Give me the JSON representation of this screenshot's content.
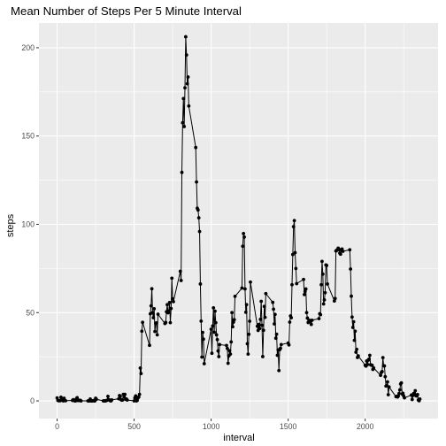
{
  "chart_data": {
    "type": "line",
    "title": "Mean Number of Steps Per 5 Minute Interval",
    "xlabel": "interval",
    "ylabel": "steps",
    "xlim": [
      -118,
      2473
    ],
    "ylim": [
      -10,
      214
    ],
    "x_ticks": [
      0,
      500,
      1000,
      1500,
      2000
    ],
    "y_ticks": [
      0,
      50,
      100,
      150,
      200
    ],
    "grid": true,
    "markers": true,
    "colors": {
      "panel": "#ebebeb",
      "grid_major": "#ffffff",
      "line": "#000000",
      "point": "#000000"
    },
    "series": [
      {
        "x": [
          0,
          5,
          10,
          15,
          20,
          25,
          30,
          35,
          40,
          45,
          50,
          55,
          100,
          105,
          110,
          115,
          120,
          125,
          130,
          135,
          140,
          145,
          150,
          155,
          200,
          205,
          210,
          215,
          220,
          225,
          230,
          235,
          240,
          245,
          250,
          255,
          300,
          305,
          310,
          315,
          320,
          325,
          330,
          335,
          340,
          345,
          350,
          355,
          400,
          405,
          410,
          415,
          420,
          425,
          430,
          435,
          440,
          445,
          450,
          455,
          500,
          505,
          510,
          515,
          520,
          525,
          530,
          535,
          540,
          545,
          550,
          555,
          600,
          605,
          610,
          615,
          620,
          625,
          630,
          635,
          640,
          645,
          650,
          655,
          700,
          705,
          710,
          715,
          720,
          725,
          730,
          735,
          740,
          745,
          750,
          755,
          800,
          805,
          810,
          815,
          820,
          825,
          830,
          835,
          840,
          845,
          850,
          855,
          900,
          905,
          910,
          915,
          920,
          925,
          930,
          935,
          940,
          945,
          950,
          955,
          1000,
          1005,
          1010,
          1015,
          1020,
          1025,
          1030,
          1035,
          1040,
          1045,
          1050,
          1055,
          1100,
          1105,
          1110,
          1115,
          1120,
          1125,
          1130,
          1135,
          1140,
          1145,
          1150,
          1155,
          1200,
          1205,
          1210,
          1215,
          1220,
          1225,
          1230,
          1235,
          1240,
          1245,
          1250,
          1255,
          1300,
          1305,
          1310,
          1315,
          1320,
          1325,
          1330,
          1335,
          1340,
          1345,
          1350,
          1355,
          1400,
          1405,
          1410,
          1415,
          1420,
          1425,
          1430,
          1435,
          1440,
          1445,
          1450,
          1455,
          1500,
          1505,
          1510,
          1515,
          1520,
          1525,
          1530,
          1535,
          1540,
          1545,
          1550,
          1555,
          1600,
          1605,
          1610,
          1615,
          1620,
          1625,
          1630,
          1635,
          1640,
          1645,
          1650,
          1655,
          1700,
          1705,
          1710,
          1715,
          1720,
          1725,
          1730,
          1735,
          1740,
          1745,
          1750,
          1755,
          1800,
          1805,
          1810,
          1815,
          1820,
          1825,
          1830,
          1835,
          1840,
          1845,
          1850,
          1855,
          1900,
          1905,
          1910,
          1915,
          1920,
          1925,
          1930,
          1935,
          1940,
          1945,
          1950,
          1955,
          2000,
          2005,
          2010,
          2015,
          2020,
          2025,
          2030,
          2035,
          2040,
          2045,
          2050,
          2055,
          2100,
          2105,
          2110,
          2115,
          2120,
          2125,
          2130,
          2135,
          2140,
          2145,
          2150,
          2155,
          2200,
          2205,
          2210,
          2215,
          2220,
          2225,
          2230,
          2235,
          2240,
          2245,
          2250,
          2255,
          2300,
          2305,
          2310,
          2315,
          2320,
          2325,
          2330,
          2335,
          2340,
          2345,
          2350,
          2355
        ],
        "y": [
          1.7,
          0.3,
          0.1,
          0.2,
          0.1,
          2.1,
          0.5,
          0.9,
          0,
          1.5,
          0.3,
          0.1,
          0.3,
          0.7,
          0.2,
          0,
          0,
          1.1,
          1.8,
          0.2,
          0.2,
          0.4,
          0.3,
          0,
          0,
          0,
          0,
          1.1,
          0,
          0,
          0,
          0.2,
          0,
          0,
          1.5,
          0.9,
          0,
          0,
          0,
          0,
          0.2,
          0.4,
          2.6,
          0.7,
          0.5,
          0.1,
          0,
          0.6,
          1.2,
          3,
          2.6,
          0.7,
          0.4,
          0.5,
          3.7,
          2.3,
          3.7,
          0.9,
          1.1,
          0.5,
          0,
          1.7,
          2.8,
          0,
          0.3,
          1.7,
          2.2,
          3.7,
          18.6,
          15.5,
          39.5,
          44.5,
          31.5,
          49.3,
          53.8,
          63.5,
          50,
          47.1,
          52.2,
          39.3,
          44,
          44.2,
          37.4,
          49.1,
          43.8,
          44.4,
          50.5,
          54.5,
          49.9,
          50.9,
          55.7,
          44.3,
          52.3,
          69.5,
          57.8,
          56.2,
          73.4,
          68.2,
          129.4,
          157.5,
          171.2,
          155.4,
          177.3,
          206.2,
          195.9,
          179.6,
          183.4,
          167,
          143.5,
          124,
          109.1,
          108.1,
          103.7,
          95.9,
          66.2,
          45.2,
          24.8,
          38.8,
          34.98,
          21.1,
          40.6,
          26.98,
          42.4,
          52.7,
          38.9,
          50.8,
          44.3,
          37.4,
          34.7,
          28.3,
          25.1,
          31.9,
          31.4,
          29.7,
          21.3,
          25.5,
          28.4,
          26.5,
          33.4,
          50,
          42,
          44.6,
          46,
          59.2,
          63.9,
          87.6,
          94.8,
          92.8,
          63.4,
          50.2,
          54.5,
          32.4,
          26.5,
          37.7,
          45.1,
          67.3,
          42.3,
          39.9,
          43.3,
          40.98,
          46.2,
          56.4,
          42.8,
          25.1,
          39.97,
          53.5,
          47.3,
          60.8,
          55.8,
          51.96,
          43.6,
          49,
          35.5,
          37.8,
          25.8,
          28.9,
          17.2,
          29,
          29.8,
          31.9,
          32.8,
          31.7,
          44.6,
          48.1,
          47.1,
          65.8,
          82.9,
          98.7,
          102.1,
          83.96,
          75,
          66.4,
          68.8,
          60.2,
          62.1,
          63.4,
          50,
          46.9,
          44.4,
          44.8,
          45.6,
          45.3,
          43.3,
          45.7,
          46.6,
          49.4,
          48.8,
          65.8,
          79,
          71.8,
          54.9,
          57.2,
          61.3,
          77,
          76.7,
          66.2,
          56.6,
          58,
          84.9,
          85.3,
          85.6,
          86.5,
          85.8,
          83.7,
          83.1,
          85.5,
          86,
          84.7,
          85.6,
          74.7,
          59.3,
          47.5,
          41.6,
          44.8,
          34.3,
          39.5,
          27.6,
          29.2,
          24.6,
          25.5,
          20.2,
          19.7,
          22.6,
          20.6,
          23.1,
          23.7,
          25.8,
          20.5,
          20.2,
          20.2,
          17.8,
          18.7,
          14.5,
          16.1,
          16.6,
          24.5,
          19.9,
          19.8,
          13.7,
          8.4,
          8.7,
          10.8,
          3.5,
          7.9,
          2.4,
          2.6,
          2.2,
          2.8,
          4.2,
          6.2,
          9.6,
          10.2,
          3.9,
          4.3,
          2.8,
          1.7,
          3.3,
          0.8,
          3.1,
          4.2,
          3.6,
          5.8,
          2.9,
          2.8,
          3.6,
          0.5,
          0.1,
          1.1
        ]
      }
    ]
  }
}
